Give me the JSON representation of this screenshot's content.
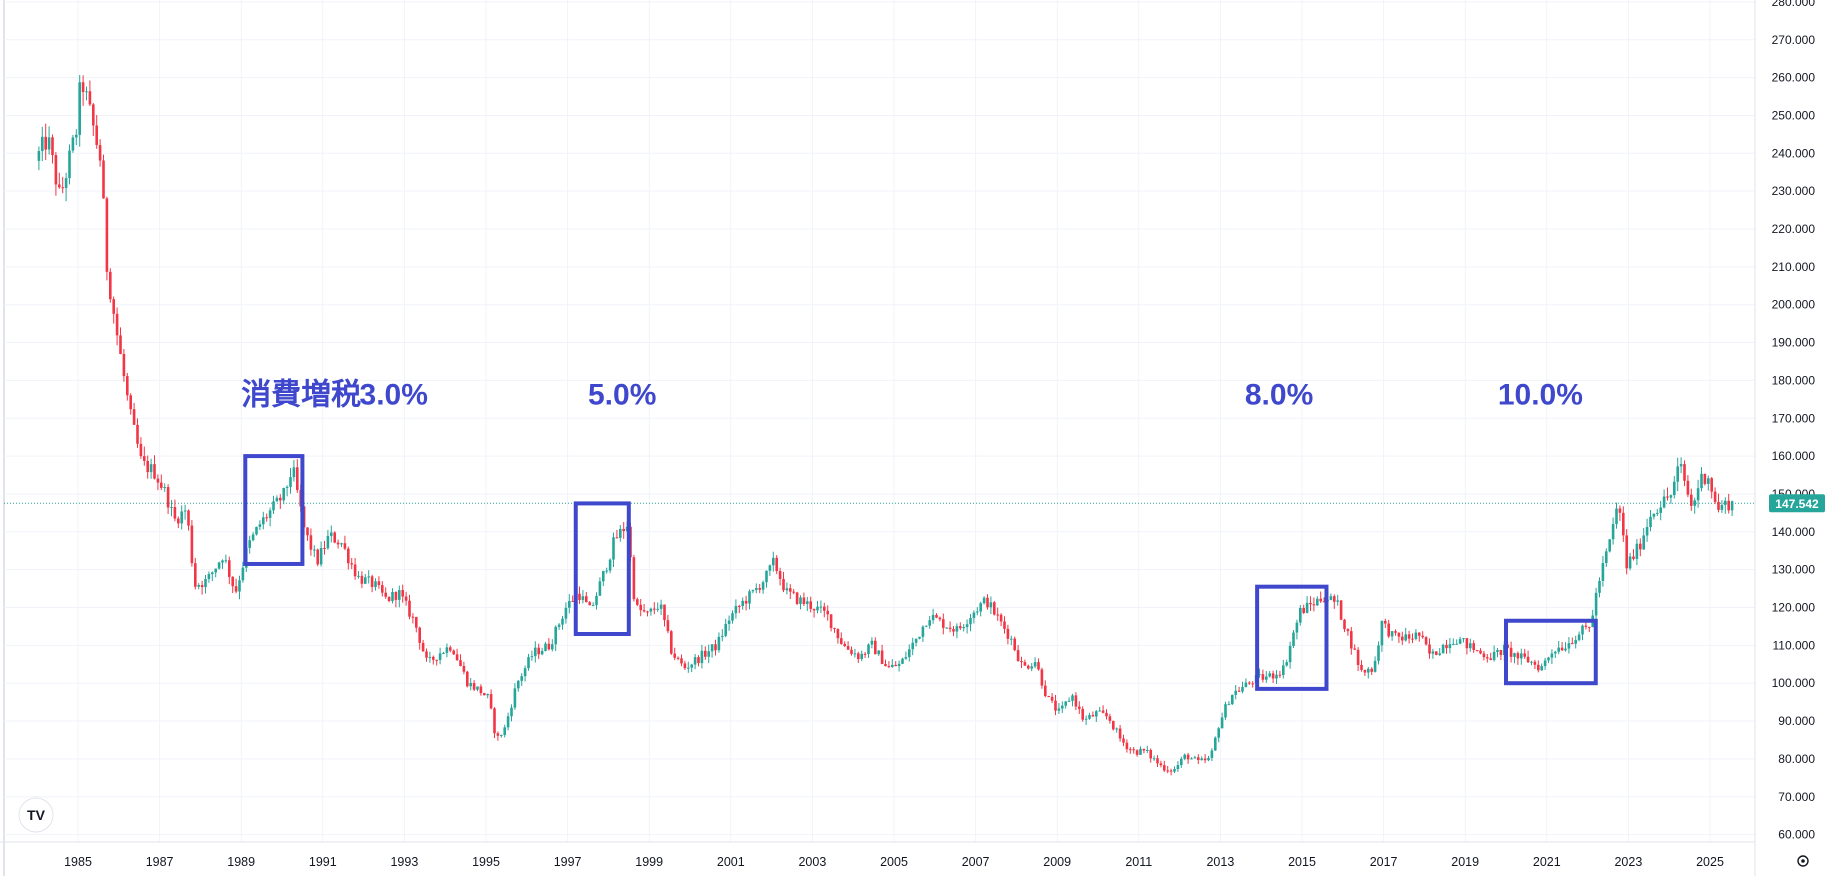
{
  "chart_data": {
    "type": "candlestick",
    "title": "",
    "xlabel": "",
    "ylabel": "",
    "x_range": [
      1983.9,
      1985.4
    ],
    "y_range": [
      58,
      288
    ],
    "y_ticks": [
      "60.000",
      "70.000",
      "80.000",
      "90.000",
      "100.000",
      "110.000",
      "120.000",
      "130.000",
      "140.000",
      "150.000",
      "160.000",
      "170.000",
      "180.000",
      "190.000",
      "200.000",
      "210.000",
      "220.000",
      "230.000",
      "240.000",
      "250.000",
      "260.000",
      "270.000",
      "280.000"
    ],
    "x_ticks": [
      "1985",
      "1987",
      "1989",
      "1991",
      "1993",
      "1995",
      "1997",
      "1999",
      "2001",
      "2003",
      "2005",
      "2007",
      "2009",
      "2011",
      "2013",
      "2015",
      "2017",
      "2019",
      "2021",
      "2023",
      "2025"
    ],
    "grid": true,
    "last_price": "147.542",
    "last_price_value": 147.542,
    "up_color": "#26a69a",
    "down_color": "#f23645",
    "annotation_color": "#3f48cc",
    "annotations": [
      {
        "text": "消費増税",
        "x": 1989.0,
        "y": 176.5
      },
      {
        "text": "3.0%",
        "x": 1991.9,
        "y": 176.5
      },
      {
        "text": "5.0%",
        "x": 1997.5,
        "y": 176.5
      },
      {
        "text": "8.0%",
        "x": 2013.6,
        "y": 176.5
      },
      {
        "text": "10.0%",
        "x": 2019.8,
        "y": 176.5
      }
    ],
    "highlight_boxes": [
      {
        "x0": 1989.1,
        "x1": 1990.5,
        "y0": 131.5,
        "y1": 160.0
      },
      {
        "x0": 1997.2,
        "x1": 1998.5,
        "y0": 113.0,
        "y1": 147.5
      },
      {
        "x0": 2013.9,
        "x1": 2015.6,
        "y0": 98.5,
        "y1": 125.5
      },
      {
        "x0": 2020.0,
        "x1": 2022.2,
        "y0": 100.0,
        "y1": 116.5
      }
    ],
    "anchors": [
      [
        1984.0,
        238
      ],
      [
        1984.3,
        244
      ],
      [
        1984.6,
        228
      ],
      [
        1985.0,
        246
      ],
      [
        1985.12,
        260
      ],
      [
        1985.35,
        250
      ],
      [
        1985.6,
        238
      ],
      [
        1985.75,
        210
      ],
      [
        1986.0,
        192
      ],
      [
        1986.3,
        172
      ],
      [
        1986.6,
        158
      ],
      [
        1986.9,
        156
      ],
      [
        1987.2,
        150
      ],
      [
        1987.4,
        143
      ],
      [
        1987.7,
        146
      ],
      [
        1987.9,
        126
      ],
      [
        1988.2,
        127
      ],
      [
        1988.6,
        134
      ],
      [
        1988.9,
        124
      ],
      [
        1989.2,
        136
      ],
      [
        1989.5,
        142
      ],
      [
        1989.8,
        146
      ],
      [
        1990.1,
        150
      ],
      [
        1990.3,
        157
      ],
      [
        1990.6,
        140
      ],
      [
        1990.9,
        132
      ],
      [
        1991.2,
        139
      ],
      [
        1991.5,
        137
      ],
      [
        1991.9,
        128
      ],
      [
        1992.3,
        126
      ],
      [
        1992.6,
        122
      ],
      [
        1992.9,
        124
      ],
      [
        1993.3,
        116
      ],
      [
        1993.6,
        105
      ],
      [
        1993.9,
        108
      ],
      [
        1994.2,
        110
      ],
      [
        1994.6,
        100
      ],
      [
        1994.9,
        98
      ],
      [
        1995.1,
        96
      ],
      [
        1995.3,
        85
      ],
      [
        1995.5,
        88
      ],
      [
        1995.8,
        100
      ],
      [
        1996.2,
        108
      ],
      [
        1996.6,
        110
      ],
      [
        1997.0,
        120
      ],
      [
        1997.3,
        124
      ],
      [
        1997.6,
        119
      ],
      [
        1997.9,
        128
      ],
      [
        1998.2,
        138
      ],
      [
        1998.5,
        142
      ],
      [
        1998.7,
        120
      ],
      [
        1999.0,
        118
      ],
      [
        1999.3,
        121
      ],
      [
        1999.6,
        108
      ],
      [
        1999.9,
        104
      ],
      [
        2000.3,
        107
      ],
      [
        2000.7,
        110
      ],
      [
        2001.0,
        117
      ],
      [
        2001.3,
        121
      ],
      [
        2001.6,
        124
      ],
      [
        2001.9,
        128
      ],
      [
        2002.1,
        132
      ],
      [
        2002.4,
        124
      ],
      [
        2002.7,
        122
      ],
      [
        2003.1,
        120
      ],
      [
        2003.4,
        118
      ],
      [
        2003.8,
        110
      ],
      [
        2004.2,
        107
      ],
      [
        2004.5,
        110
      ],
      [
        2004.9,
        104
      ],
      [
        2005.2,
        105
      ],
      [
        2005.6,
        112
      ],
      [
        2005.9,
        118
      ],
      [
        2006.2,
        116
      ],
      [
        2006.6,
        114
      ],
      [
        2007.0,
        119
      ],
      [
        2007.3,
        122
      ],
      [
        2007.6,
        117
      ],
      [
        2007.9,
        112
      ],
      [
        2008.2,
        104
      ],
      [
        2008.5,
        106
      ],
      [
        2008.8,
        96
      ],
      [
        2009.1,
        92
      ],
      [
        2009.4,
        97
      ],
      [
        2009.7,
        90
      ],
      [
        2010.0,
        92
      ],
      [
        2010.3,
        91
      ],
      [
        2010.6,
        85
      ],
      [
        2010.9,
        82
      ],
      [
        2011.2,
        82
      ],
      [
        2011.6,
        78
      ],
      [
        2011.9,
        77
      ],
      [
        2012.2,
        81
      ],
      [
        2012.5,
        79
      ],
      [
        2012.8,
        80
      ],
      [
        2013.0,
        89
      ],
      [
        2013.3,
        97
      ],
      [
        2013.6,
        99
      ],
      [
        2013.9,
        101
      ],
      [
        2014.3,
        102
      ],
      [
        2014.6,
        104
      ],
      [
        2014.8,
        112
      ],
      [
        2015.0,
        119
      ],
      [
        2015.3,
        121
      ],
      [
        2015.6,
        123
      ],
      [
        2015.9,
        121
      ],
      [
        2016.2,
        112
      ],
      [
        2016.5,
        103
      ],
      [
        2016.8,
        104
      ],
      [
        2017.0,
        116
      ],
      [
        2017.3,
        112
      ],
      [
        2017.7,
        112
      ],
      [
        2017.9,
        113
      ],
      [
        2018.2,
        107
      ],
      [
        2018.5,
        110
      ],
      [
        2018.8,
        112
      ],
      [
        2019.1,
        110
      ],
      [
        2019.4,
        108
      ],
      [
        2019.7,
        107
      ],
      [
        2020.0,
        109
      ],
      [
        2020.3,
        107
      ],
      [
        2020.6,
        106
      ],
      [
        2020.9,
        104
      ],
      [
        2021.2,
        109
      ],
      [
        2021.5,
        110
      ],
      [
        2021.8,
        113
      ],
      [
        2022.1,
        115
      ],
      [
        2022.3,
        126
      ],
      [
        2022.6,
        138
      ],
      [
        2022.8,
        148
      ],
      [
        2023.0,
        131
      ],
      [
        2023.3,
        136
      ],
      [
        2023.6,
        145
      ],
      [
        2023.9,
        148
      ],
      [
        2024.1,
        150
      ],
      [
        2024.3,
        158
      ],
      [
        2024.6,
        146
      ],
      [
        2024.8,
        154
      ],
      [
        2025.0,
        155
      ],
      [
        2025.2,
        146
      ],
      [
        2025.5,
        147.5
      ]
    ]
  },
  "footer": {
    "logo_text": "TV",
    "settings_icon": "gear-icon"
  }
}
